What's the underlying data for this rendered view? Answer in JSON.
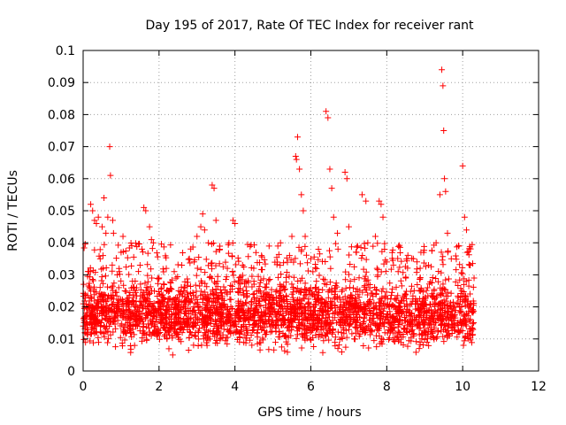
{
  "chart_data": {
    "type": "scatter",
    "title": "Day 195 of 2017, Rate Of TEC Index for receiver rant",
    "xlabel": "GPS time / hours",
    "ylabel": "ROTI / TECUs",
    "xlim": [
      0,
      12
    ],
    "ylim": [
      0,
      0.1
    ],
    "xticks": [
      "0",
      "2",
      "4",
      "6",
      "8",
      "10",
      "12"
    ],
    "yticks": [
      "0",
      "0.01",
      "0.02",
      "0.03",
      "0.04",
      "0.05",
      "0.06",
      "0.07",
      "0.08",
      "0.09",
      "0.1"
    ],
    "grid": true,
    "marker": "plus",
    "color": "#ff0000",
    "series": [
      {
        "name": "ROTI",
        "points": [
          [
            0.05,
            0.024
          ],
          [
            0.1,
            0.015
          ],
          [
            0.15,
            0.031
          ],
          [
            0.2,
            0.052
          ],
          [
            0.25,
            0.05
          ],
          [
            0.3,
            0.047
          ],
          [
            0.35,
            0.046
          ],
          [
            0.4,
            0.048
          ],
          [
            0.45,
            0.035
          ],
          [
            0.5,
            0.045
          ],
          [
            0.55,
            0.054
          ],
          [
            0.6,
            0.043
          ],
          [
            0.65,
            0.048
          ],
          [
            0.7,
            0.07
          ],
          [
            0.72,
            0.061
          ],
          [
            0.78,
            0.047
          ],
          [
            0.8,
            0.043
          ],
          [
            0.9,
            0.03
          ],
          [
            1.0,
            0.037
          ],
          [
            1.05,
            0.042
          ],
          [
            1.1,
            0.025
          ],
          [
            1.3,
            0.028
          ],
          [
            1.5,
            0.033
          ],
          [
            1.6,
            0.051
          ],
          [
            1.65,
            0.05
          ],
          [
            1.75,
            0.045
          ],
          [
            1.8,
            0.041
          ],
          [
            1.85,
            0.04
          ],
          [
            2.0,
            0.029
          ],
          [
            2.2,
            0.025
          ],
          [
            2.4,
            0.031
          ],
          [
            2.6,
            0.033
          ],
          [
            2.8,
            0.035
          ],
          [
            3.0,
            0.042
          ],
          [
            3.1,
            0.045
          ],
          [
            3.15,
            0.049
          ],
          [
            3.2,
            0.044
          ],
          [
            3.3,
            0.04
          ],
          [
            3.4,
            0.058
          ],
          [
            3.45,
            0.057
          ],
          [
            3.5,
            0.047
          ],
          [
            3.6,
            0.038
          ],
          [
            3.8,
            0.032
          ],
          [
            3.95,
            0.047
          ],
          [
            4.0,
            0.046
          ],
          [
            4.2,
            0.033
          ],
          [
            4.5,
            0.028
          ],
          [
            4.7,
            0.036
          ],
          [
            4.9,
            0.039
          ],
          [
            5.2,
            0.04
          ],
          [
            5.5,
            0.042
          ],
          [
            5.6,
            0.067
          ],
          [
            5.62,
            0.066
          ],
          [
            5.65,
            0.073
          ],
          [
            5.7,
            0.063
          ],
          [
            5.75,
            0.055
          ],
          [
            5.8,
            0.05
          ],
          [
            5.85,
            0.042
          ],
          [
            6.0,
            0.035
          ],
          [
            6.2,
            0.038
          ],
          [
            6.4,
            0.081
          ],
          [
            6.45,
            0.079
          ],
          [
            6.5,
            0.063
          ],
          [
            6.55,
            0.057
          ],
          [
            6.6,
            0.048
          ],
          [
            6.7,
            0.043
          ],
          [
            6.9,
            0.062
          ],
          [
            6.95,
            0.06
          ],
          [
            7.0,
            0.045
          ],
          [
            7.2,
            0.037
          ],
          [
            7.35,
            0.055
          ],
          [
            7.45,
            0.053
          ],
          [
            7.5,
            0.04
          ],
          [
            7.7,
            0.042
          ],
          [
            7.8,
            0.053
          ],
          [
            7.85,
            0.052
          ],
          [
            7.9,
            0.048
          ],
          [
            8.0,
            0.034
          ],
          [
            8.3,
            0.031
          ],
          [
            8.5,
            0.029
          ],
          [
            8.7,
            0.035
          ],
          [
            8.9,
            0.037
          ],
          [
            9.1,
            0.033
          ],
          [
            9.3,
            0.04
          ],
          [
            9.4,
            0.055
          ],
          [
            9.45,
            0.094
          ],
          [
            9.48,
            0.089
          ],
          [
            9.5,
            0.075
          ],
          [
            9.52,
            0.06
          ],
          [
            9.55,
            0.056
          ],
          [
            9.6,
            0.043
          ],
          [
            9.7,
            0.035
          ],
          [
            9.9,
            0.039
          ],
          [
            10.0,
            0.064
          ],
          [
            10.05,
            0.048
          ],
          [
            10.1,
            0.044
          ],
          [
            10.2,
            0.033
          ],
          [
            10.3,
            0.029
          ]
        ]
      }
    ],
    "noise_band": {
      "description": "dense background cloud of points between x 0 and 10.3",
      "y_range": [
        0.004,
        0.03
      ]
    }
  }
}
